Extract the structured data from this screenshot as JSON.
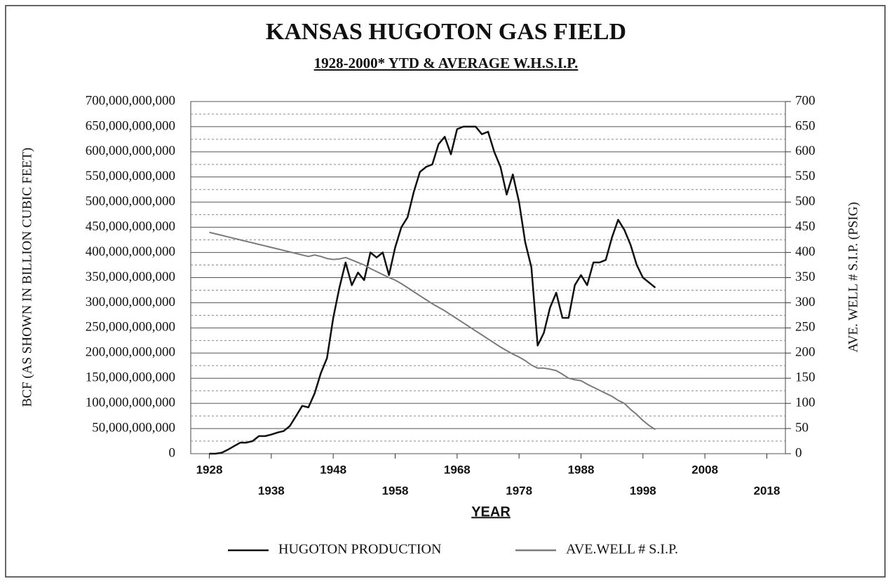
{
  "chart_data": {
    "type": "line",
    "title": "KANSAS HUGOTON GAS FIELD",
    "subtitle": "1928-2000* YTD & AVERAGE  W.H.S.I.P.",
    "xlabel": "YEAR",
    "ylabel": "BCF (AS SHOWN IN BILLION CUBIC FEET)",
    "y2label": "AVE. WELL # S.I.P. (PSIG)",
    "x": [
      1928,
      1929,
      1930,
      1931,
      1932,
      1933,
      1934,
      1935,
      1936,
      1937,
      1938,
      1939,
      1940,
      1941,
      1942,
      1943,
      1944,
      1945,
      1946,
      1947,
      1948,
      1949,
      1950,
      1951,
      1952,
      1953,
      1954,
      1955,
      1956,
      1957,
      1958,
      1959,
      1960,
      1961,
      1962,
      1963,
      1964,
      1965,
      1966,
      1967,
      1968,
      1969,
      1970,
      1971,
      1972,
      1973,
      1974,
      1975,
      1976,
      1977,
      1978,
      1979,
      1980,
      1981,
      1982,
      1983,
      1984,
      1985,
      1986,
      1987,
      1988,
      1989,
      1990,
      1991,
      1992,
      1993,
      1994,
      1995,
      1996,
      1997,
      1998,
      1999,
      2000
    ],
    "series": [
      {
        "name": "HUGOTON PRODUCTION",
        "color": "#111111",
        "values": [
          0,
          0,
          2000000000.0,
          8000000000.0,
          15000000000.0,
          22000000000.0,
          22000000000.0,
          25000000000.0,
          35000000000.0,
          35000000000.0,
          38000000000.0,
          42000000000.0,
          45000000000.0,
          55000000000.0,
          75000000000.0,
          95000000000.0,
          92000000000.0,
          120000000000.0,
          160000000000.0,
          190000000000.0,
          270000000000.0,
          330000000000.0,
          380000000000.0,
          335000000000.0,
          360000000000.0,
          345000000000.0,
          400000000000.0,
          390000000000.0,
          400000000000.0,
          355000000000.0,
          410000000000.0,
          450000000000.0,
          470000000000.0,
          520000000000.0,
          560000000000.0,
          570000000000.0,
          575000000000.0,
          615000000000.0,
          630000000000.0,
          595000000000.0,
          645000000000.0,
          650000000000.0,
          650000000000.0,
          650000000000.0,
          635000000000.0,
          640000000000.0,
          600000000000.0,
          570000000000.0,
          515000000000.0,
          555000000000.0,
          500000000000.0,
          420000000000.0,
          370000000000.0,
          215000000000.0,
          240000000000.0,
          290000000000.0,
          320000000000.0,
          270000000000.0,
          270000000000.0,
          335000000000.0,
          355000000000.0,
          335000000000.0,
          380000000000.0,
          380000000000.0,
          385000000000.0,
          430000000000.0,
          465000000000.0,
          445000000000.0,
          415000000000.0,
          375000000000.0,
          350000000000.0,
          340000000000.0,
          330000000000.0
        ]
      },
      {
        "name": "AVE.WELL # S.I.P.",
        "color": "#7a7a7a",
        "axis": "y2",
        "values": [
          440,
          437,
          434,
          431,
          428,
          425,
          422,
          419,
          416,
          413,
          410,
          407,
          404,
          401,
          398,
          395,
          392,
          395,
          392,
          388,
          386,
          387,
          390,
          385,
          380,
          375,
          368,
          362,
          356,
          350,
          345,
          338,
          330,
          322,
          314,
          306,
          298,
          291,
          284,
          276,
          268,
          260,
          252,
          244,
          236,
          228,
          220,
          212,
          205,
          198,
          192,
          185,
          176,
          170,
          170,
          168,
          165,
          158,
          150,
          147,
          145,
          138,
          132,
          126,
          120,
          114,
          106,
          100,
          88,
          78,
          66,
          56,
          48
        ]
      }
    ],
    "xlim": [
      1925,
      2021
    ],
    "xticks": [
      1928,
      1938,
      1948,
      1958,
      1968,
      1978,
      1988,
      1998,
      2008,
      2018
    ],
    "ylim": [
      0,
      700000000000
    ],
    "yticks": [
      0,
      {
        "value": 50000000000,
        "label": "50,000,000,000"
      },
      {
        "value": 100000000000,
        "label": "100,000,000,000"
      },
      {
        "value": 150000000000,
        "label": "150,000,000,000"
      },
      {
        "value": 200000000000,
        "label": "200,000,000,000"
      },
      {
        "value": 250000000000,
        "label": "250,000,000,000"
      },
      {
        "value": 300000000000,
        "label": "300,000,000,000"
      },
      {
        "value": 350000000000,
        "label": "350,000,000,000"
      },
      {
        "value": 400000000000,
        "label": "400,000,000,000"
      },
      {
        "value": 450000000000,
        "label": "450,000,000,000"
      },
      {
        "value": 500000000000,
        "label": "500,000,000,000"
      },
      {
        "value": 550000000000,
        "label": "550,000,000,000"
      },
      {
        "value": 600000000000,
        "label": "600,000,000,000"
      },
      {
        "value": 650000000000,
        "label": "650,000,000,000"
      },
      {
        "value": 700000000000,
        "label": "700,000,000,000"
      }
    ],
    "y2lim": [
      0,
      700
    ],
    "y2ticks": [
      0,
      50,
      100,
      150,
      200,
      250,
      300,
      350,
      400,
      450,
      500,
      550,
      600,
      650,
      700
    ],
    "grid": true,
    "legend": "bottom"
  }
}
